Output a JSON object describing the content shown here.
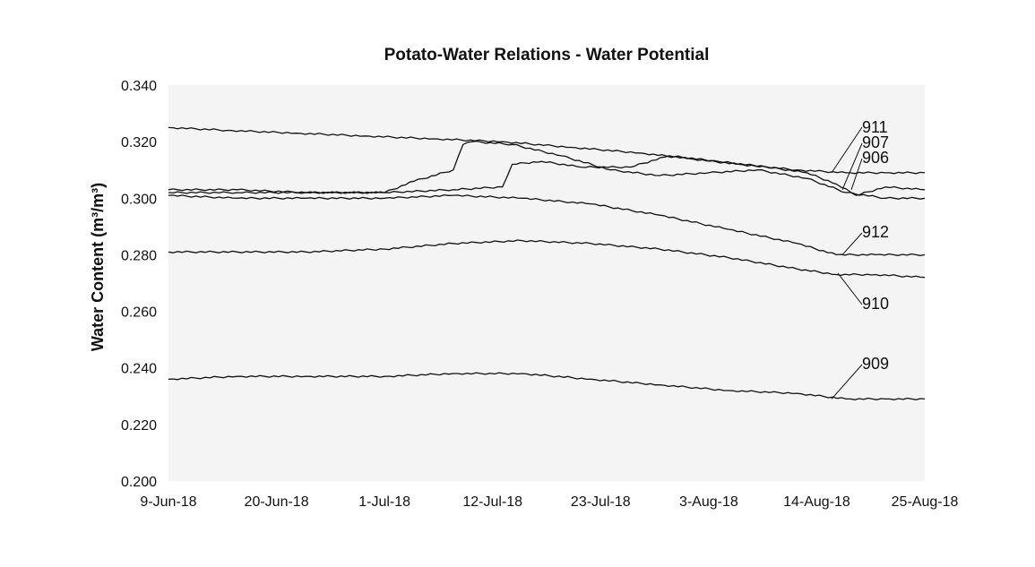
{
  "chart_data": {
    "type": "line",
    "title": "Potato-Water Relations - Water Potential",
    "ylabel": "Water Content (m³/m³)",
    "xlabel": "",
    "ylim": [
      0.2,
      0.34
    ],
    "yticks": [
      "0.200",
      "0.220",
      "0.240",
      "0.260",
      "0.280",
      "0.300",
      "0.320",
      "0.340"
    ],
    "xticks": [
      "9-Jun-18",
      "20-Jun-18",
      "1-Jul-18",
      "12-Jul-18",
      "23-Jul-18",
      "3-Aug-18",
      "14-Aug-18",
      "25-Aug-18"
    ],
    "x_range": [
      "2018-06-09",
      "2018-08-25"
    ],
    "grid": false,
    "plot_background": "#f4f4f4",
    "line_color": "#111111",
    "series": [
      {
        "name": "911",
        "points": [
          [
            "2018-06-09",
            0.325
          ],
          [
            "2018-06-15",
            0.324
          ],
          [
            "2018-06-22",
            0.323
          ],
          [
            "2018-06-29",
            0.322
          ],
          [
            "2018-07-06",
            0.321
          ],
          [
            "2018-07-13",
            0.32
          ],
          [
            "2018-07-20",
            0.318
          ],
          [
            "2018-07-27",
            0.316
          ],
          [
            "2018-08-01",
            0.314
          ],
          [
            "2018-08-06",
            0.312
          ],
          [
            "2018-08-12",
            0.31
          ],
          [
            "2018-08-17",
            0.309
          ],
          [
            "2018-08-21",
            0.309
          ],
          [
            "2018-08-25",
            0.309
          ]
        ]
      },
      {
        "name": "907",
        "points": [
          [
            "2018-06-09",
            0.303
          ],
          [
            "2018-06-16",
            0.303
          ],
          [
            "2018-06-23",
            0.302
          ],
          [
            "2018-07-01",
            0.302
          ],
          [
            "2018-07-04",
            0.306
          ],
          [
            "2018-07-08",
            0.31
          ],
          [
            "2018-07-09",
            0.319
          ],
          [
            "2018-07-10",
            0.32
          ],
          [
            "2018-07-14",
            0.319
          ],
          [
            "2018-07-19",
            0.315
          ],
          [
            "2018-07-24",
            0.31
          ],
          [
            "2018-07-29",
            0.308
          ],
          [
            "2018-08-03",
            0.309
          ],
          [
            "2018-08-08",
            0.31
          ],
          [
            "2018-08-13",
            0.307
          ],
          [
            "2018-08-17",
            0.302
          ],
          [
            "2018-08-21",
            0.3
          ],
          [
            "2018-08-25",
            0.3
          ]
        ]
      },
      {
        "name": "906",
        "points": [
          [
            "2018-06-09",
            0.302
          ],
          [
            "2018-06-16",
            0.302
          ],
          [
            "2018-06-23",
            0.302
          ],
          [
            "2018-07-01",
            0.302
          ],
          [
            "2018-07-08",
            0.303
          ],
          [
            "2018-07-13",
            0.304
          ],
          [
            "2018-07-14",
            0.312
          ],
          [
            "2018-07-17",
            0.313
          ],
          [
            "2018-07-21",
            0.311
          ],
          [
            "2018-07-26",
            0.311
          ],
          [
            "2018-07-30",
            0.315
          ],
          [
            "2018-08-04",
            0.313
          ],
          [
            "2018-08-09",
            0.311
          ],
          [
            "2018-08-13",
            0.309
          ],
          [
            "2018-08-16",
            0.305
          ],
          [
            "2018-08-18",
            0.301
          ],
          [
            "2018-08-21",
            0.304
          ],
          [
            "2018-08-25",
            0.303
          ]
        ]
      },
      {
        "name": "912",
        "points": [
          [
            "2018-06-09",
            0.301
          ],
          [
            "2018-06-16",
            0.3
          ],
          [
            "2018-06-23",
            0.3
          ],
          [
            "2018-07-01",
            0.3
          ],
          [
            "2018-07-08",
            0.301
          ],
          [
            "2018-07-15",
            0.3
          ],
          [
            "2018-07-22",
            0.298
          ],
          [
            "2018-07-29",
            0.294
          ],
          [
            "2018-08-05",
            0.289
          ],
          [
            "2018-08-12",
            0.284
          ],
          [
            "2018-08-16",
            0.28
          ],
          [
            "2018-08-20",
            0.28
          ],
          [
            "2018-08-25",
            0.28
          ]
        ]
      },
      {
        "name": "910",
        "points": [
          [
            "2018-06-09",
            0.281
          ],
          [
            "2018-06-16",
            0.281
          ],
          [
            "2018-06-23",
            0.281
          ],
          [
            "2018-07-01",
            0.282
          ],
          [
            "2018-07-08",
            0.284
          ],
          [
            "2018-07-15",
            0.285
          ],
          [
            "2018-07-22",
            0.284
          ],
          [
            "2018-07-29",
            0.282
          ],
          [
            "2018-08-05",
            0.279
          ],
          [
            "2018-08-12",
            0.275
          ],
          [
            "2018-08-16",
            0.273
          ],
          [
            "2018-08-20",
            0.273
          ],
          [
            "2018-08-25",
            0.272
          ]
        ]
      },
      {
        "name": "909",
        "points": [
          [
            "2018-06-09",
            0.236
          ],
          [
            "2018-06-16",
            0.237
          ],
          [
            "2018-06-23",
            0.237
          ],
          [
            "2018-07-01",
            0.237
          ],
          [
            "2018-07-08",
            0.238
          ],
          [
            "2018-07-15",
            0.238
          ],
          [
            "2018-07-22",
            0.236
          ],
          [
            "2018-07-29",
            0.234
          ],
          [
            "2018-08-05",
            0.232
          ],
          [
            "2018-08-12",
            0.231
          ],
          [
            "2018-08-17",
            0.229
          ],
          [
            "2018-08-21",
            0.229
          ],
          [
            "2018-08-25",
            0.229
          ]
        ]
      }
    ]
  }
}
